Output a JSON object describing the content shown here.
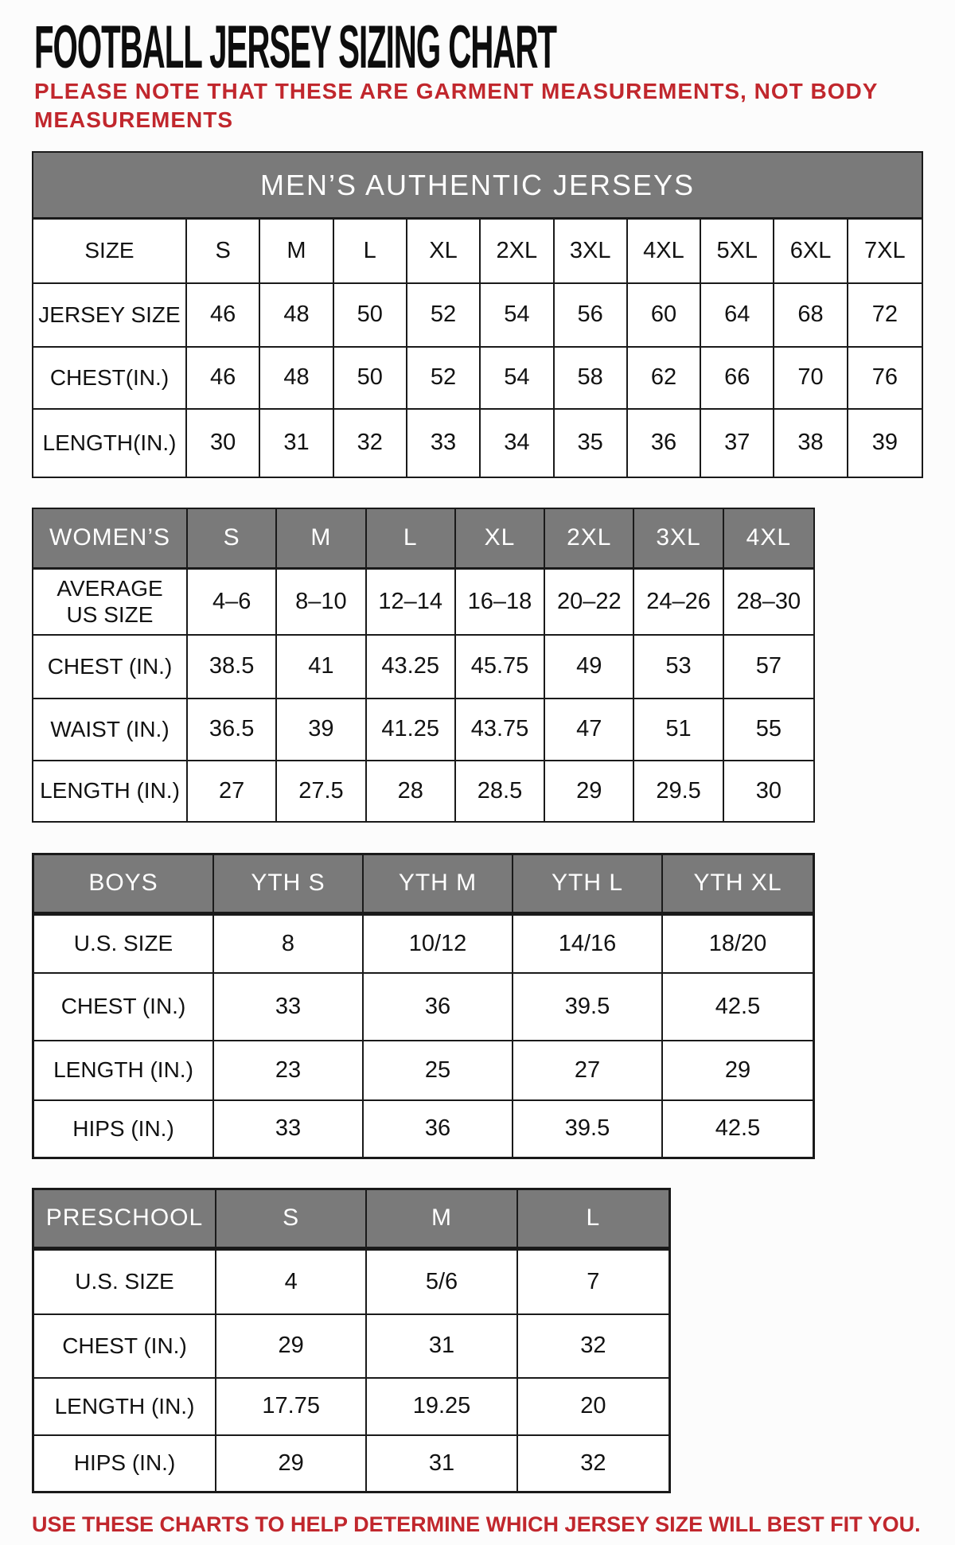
{
  "page": {
    "title": "FOOTBALL JERSEY SIZING CHART",
    "note_line1": "PLEASE NOTE THAT THESE ARE GARMENT MEASUREMENTS, NOT BODY",
    "note_line2": "MEASUREMENTS",
    "footer_note": "USE THESE CHARTS TO HELP DETERMINE WHICH JERSEY SIZE WILL BEST FIT YOU.",
    "colors": {
      "header_gray": "#7a7a7a",
      "note_red": "#c1272d",
      "border": "#1a1a1a"
    }
  },
  "tables": {
    "mens": {
      "banner": "MEN’S AUTHENTIC JERSEYS",
      "rows": [
        {
          "label": "SIZE",
          "values": [
            "S",
            "M",
            "L",
            "XL",
            "2XL",
            "3XL",
            "4XL",
            "5XL",
            "6XL",
            "7XL"
          ]
        },
        {
          "label": "JERSEY SIZE",
          "values": [
            "46",
            "48",
            "50",
            "52",
            "54",
            "56",
            "60",
            "64",
            "68",
            "72"
          ]
        },
        {
          "label": "CHEST(IN.)",
          "values": [
            "46",
            "48",
            "50",
            "52",
            "54",
            "58",
            "62",
            "66",
            "70",
            "76"
          ]
        },
        {
          "label": "LENGTH(IN.)",
          "values": [
            "30",
            "31",
            "32",
            "33",
            "34",
            "35",
            "36",
            "37",
            "38",
            "39"
          ]
        }
      ]
    },
    "womens": {
      "header_label": "WOMEN’S",
      "header_values": [
        "S",
        "M",
        "L",
        "XL",
        "2XL",
        "3XL",
        "4XL"
      ],
      "rows": [
        {
          "label": "AVERAGE\nUS SIZE",
          "values": [
            "4–6",
            "8–10",
            "12–14",
            "16–18",
            "20–22",
            "24–26",
            "28–30"
          ]
        },
        {
          "label": "CHEST (IN.)",
          "values": [
            "38.5",
            "41",
            "43.25",
            "45.75",
            "49",
            "53",
            "57"
          ]
        },
        {
          "label": "WAIST (IN.)",
          "values": [
            "36.5",
            "39",
            "41.25",
            "43.75",
            "47",
            "51",
            "55"
          ]
        },
        {
          "label": "LENGTH (IN.)",
          "values": [
            "27",
            "27.5",
            "28",
            "28.5",
            "29",
            "29.5",
            "30"
          ]
        }
      ]
    },
    "boys": {
      "header_label": "BOYS",
      "header_values": [
        "YTH S",
        "YTH M",
        "YTH L",
        "YTH XL"
      ],
      "rows": [
        {
          "label": "U.S. SIZE",
          "values": [
            "8",
            "10/12",
            "14/16",
            "18/20"
          ]
        },
        {
          "label": "CHEST (IN.)",
          "values": [
            "33",
            "36",
            "39.5",
            "42.5"
          ]
        },
        {
          "label": "LENGTH (IN.)",
          "values": [
            "23",
            "25",
            "27",
            "29"
          ]
        },
        {
          "label": "HIPS (IN.)",
          "values": [
            "33",
            "36",
            "39.5",
            "42.5"
          ]
        }
      ]
    },
    "preschool": {
      "header_label": "PRESCHOOL",
      "header_values": [
        "S",
        "M",
        "L"
      ],
      "rows": [
        {
          "label": "U.S. SIZE",
          "values": [
            "4",
            "5/6",
            "7"
          ]
        },
        {
          "label": "CHEST (IN.)",
          "values": [
            "29",
            "31",
            "32"
          ]
        },
        {
          "label": "LENGTH (IN.)",
          "values": [
            "17.75",
            "19.25",
            "20"
          ]
        },
        {
          "label": "HIPS (IN.)",
          "values": [
            "29",
            "31",
            "32"
          ]
        }
      ]
    }
  }
}
